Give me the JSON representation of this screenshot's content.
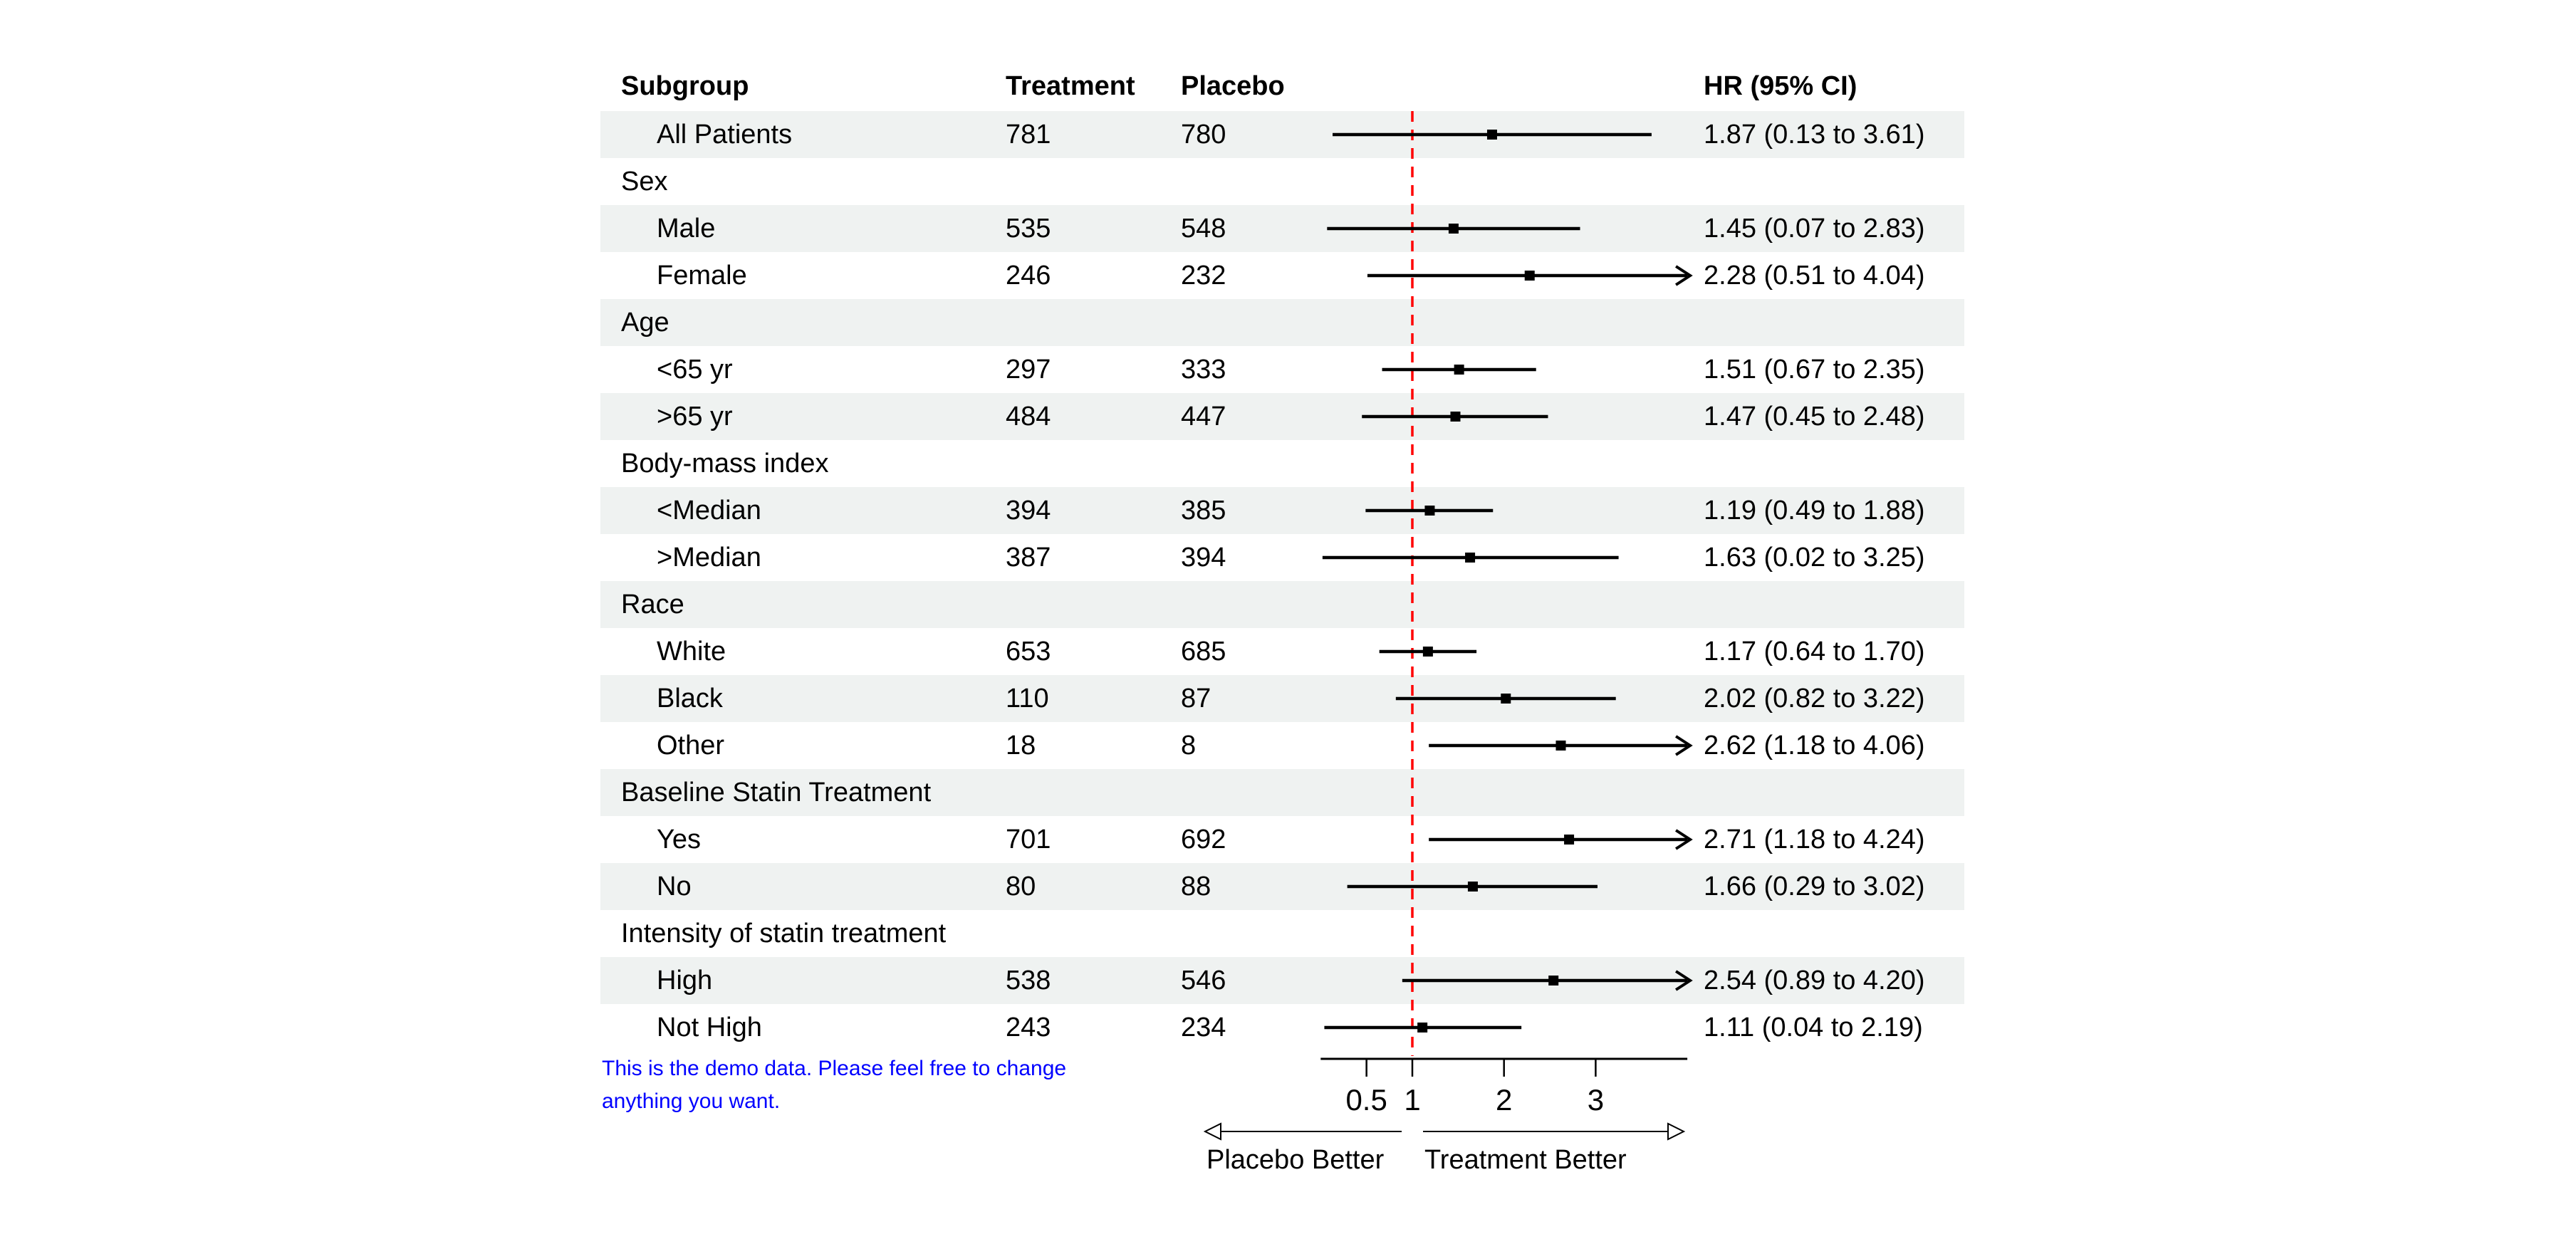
{
  "table": {
    "columns": {
      "subgroup": "Subgroup",
      "treatment": "Treatment",
      "placebo": "Placebo",
      "hr": "HR (95% CI)"
    }
  },
  "note": {
    "line1": "This is the demo data. Please feel free to change",
    "line2": "anything you want."
  },
  "colors": {
    "row_shade": "#eff2f1",
    "reference_line": "#ff0000",
    "note_text": "#0000ff",
    "data_ink": "#000000"
  },
  "chart_data": {
    "type": "forest",
    "title": "",
    "xlabel_left": "Placebo Better",
    "xlabel_right": "Treatment Better",
    "axis": {
      "ticks": [
        0.5,
        1,
        2,
        3
      ],
      "tick_labels": [
        "0.5",
        "1",
        "2",
        "3"
      ],
      "range": [
        0,
        4
      ],
      "reference": 1,
      "scale": "linear",
      "clip_upper": 4.0
    },
    "rows": [
      {
        "label": "All Patients",
        "indent": true,
        "treatment": "781",
        "placebo": "780",
        "hr": "1.87 (0.13 to 3.61)",
        "est": 1.87,
        "low": 0.13,
        "high": 3.61
      },
      {
        "label": "Sex",
        "group": true
      },
      {
        "label": "Male",
        "indent": true,
        "treatment": "535",
        "placebo": "548",
        "hr": "1.45 (0.07 to 2.83)",
        "est": 1.45,
        "low": 0.07,
        "high": 2.83
      },
      {
        "label": "Female",
        "indent": true,
        "treatment": "246",
        "placebo": "232",
        "hr": "2.28 (0.51 to 4.04)",
        "est": 2.28,
        "low": 0.51,
        "high": 4.04
      },
      {
        "label": "Age",
        "group": true
      },
      {
        "label": "<65 yr",
        "indent": true,
        "treatment": "297",
        "placebo": "333",
        "hr": "1.51 (0.67 to 2.35)",
        "est": 1.51,
        "low": 0.67,
        "high": 2.35
      },
      {
        "label": ">65 yr",
        "indent": true,
        "treatment": "484",
        "placebo": "447",
        "hr": "1.47 (0.45 to 2.48)",
        "est": 1.47,
        "low": 0.45,
        "high": 2.48
      },
      {
        "label": "Body-mass index",
        "group": true
      },
      {
        "label": "<Median",
        "indent": true,
        "treatment": "394",
        "placebo": "385",
        "hr": "1.19 (0.49 to 1.88)",
        "est": 1.19,
        "low": 0.49,
        "high": 1.88
      },
      {
        "label": ">Median",
        "indent": true,
        "treatment": "387",
        "placebo": "394",
        "hr": "1.63 (0.02 to 3.25)",
        "est": 1.63,
        "low": 0.02,
        "high": 3.25
      },
      {
        "label": "Race",
        "group": true
      },
      {
        "label": "White",
        "indent": true,
        "treatment": "653",
        "placebo": "685",
        "hr": "1.17 (0.64 to 1.70)",
        "est": 1.17,
        "low": 0.64,
        "high": 1.7
      },
      {
        "label": "Black",
        "indent": true,
        "treatment": "110",
        "placebo": "87",
        "hr": "2.02 (0.82 to 3.22)",
        "est": 2.02,
        "low": 0.82,
        "high": 3.22
      },
      {
        "label": "Other",
        "indent": true,
        "treatment": "18",
        "placebo": "8",
        "hr": "2.62 (1.18 to 4.06)",
        "est": 2.62,
        "low": 1.18,
        "high": 4.06
      },
      {
        "label": "Baseline Statin Treatment",
        "group": true
      },
      {
        "label": "Yes",
        "indent": true,
        "treatment": "701",
        "placebo": "692",
        "hr": "2.71 (1.18 to 4.24)",
        "est": 2.71,
        "low": 1.18,
        "high": 4.24
      },
      {
        "label": "No",
        "indent": true,
        "treatment": "80",
        "placebo": "88",
        "hr": "1.66 (0.29 to 3.02)",
        "est": 1.66,
        "low": 0.29,
        "high": 3.02
      },
      {
        "label": "Intensity of statin treatment",
        "group": true
      },
      {
        "label": "High",
        "indent": true,
        "treatment": "538",
        "placebo": "546",
        "hr": "2.54 (0.89 to 4.20)",
        "est": 2.54,
        "low": 0.89,
        "high": 4.2
      },
      {
        "label": "Not High",
        "indent": true,
        "treatment": "243",
        "placebo": "234",
        "hr": "1.11 (0.04 to 2.19)",
        "est": 1.11,
        "low": 0.04,
        "high": 2.19
      }
    ]
  }
}
